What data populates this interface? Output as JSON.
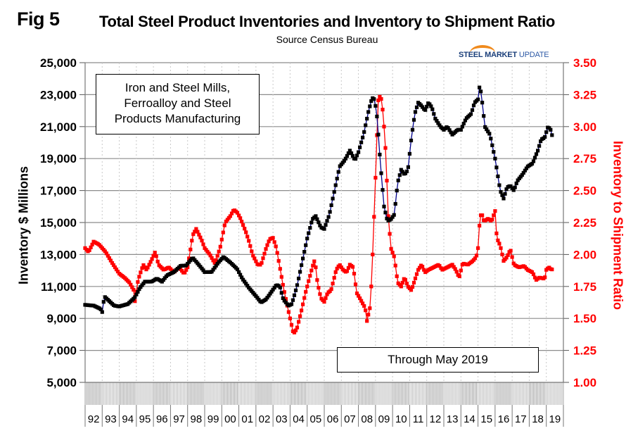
{
  "header": {
    "fig_label": "Fig 5",
    "title": "Total Steel Product Inventories and Inventory to Shipment Ratio",
    "subtitle": "Source Census Bureau",
    "logo_text_bold": "STEEL MARKET",
    "logo_text_light": " UPDATE"
  },
  "annotations": {
    "box1_lines": [
      "Iron and Steel Mills,",
      "Ferroalloy and Steel",
      "Products Manufacturing"
    ],
    "box2": "Through May 2019"
  },
  "colors": {
    "inventory_marker": "#000000",
    "inventory_line": "#00008b",
    "ratio": "#ff0000",
    "grid": "#8c8c8c"
  },
  "chart_data": {
    "type": "line",
    "title": "Total Steel Product Inventories and Inventory to Shipment Ratio",
    "subtitle": "Source Census Bureau",
    "xlabel": "",
    "ylabel": "Inventory $ Millions",
    "y2label": "Inventory to Shipment Ratio",
    "ylim": [
      5000,
      25000
    ],
    "y2lim": [
      1.0,
      3.5
    ],
    "yticks": [
      "5,000",
      "7,000",
      "9,000",
      "11,000",
      "13,000",
      "15,000",
      "17,000",
      "19,000",
      "21,000",
      "23,000",
      "25,000"
    ],
    "y2ticks": [
      "1.00",
      "1.25",
      "1.50",
      "1.75",
      "2.00",
      "2.25",
      "2.50",
      "2.75",
      "3.00",
      "3.25",
      "3.50"
    ],
    "xticks": [
      "92",
      "93",
      "94",
      "95",
      "96",
      "97",
      "98",
      "99",
      "00",
      "01",
      "02",
      "03",
      "04",
      "05",
      "06",
      "07",
      "08",
      "09",
      "10",
      "11",
      "12",
      "13",
      "14",
      "15",
      "16",
      "17",
      "18",
      "19"
    ],
    "x_range": [
      "1992-01",
      "2019-05"
    ],
    "grid": true,
    "series": [
      {
        "name": "Inventory $ Millions",
        "axis": "left",
        "points_year_value": [
          [
            1992.0,
            9850
          ],
          [
            1992.5,
            9800
          ],
          [
            1992.9,
            9600
          ],
          [
            1993.05,
            9300
          ],
          [
            1993.1,
            10400
          ],
          [
            1993.4,
            10100
          ],
          [
            1993.7,
            9800
          ],
          [
            1994.0,
            9750
          ],
          [
            1994.5,
            9900
          ],
          [
            1994.9,
            10300
          ],
          [
            1995.2,
            10900
          ],
          [
            1995.5,
            11300
          ],
          [
            1995.9,
            11300
          ],
          [
            1996.2,
            11500
          ],
          [
            1996.5,
            11300
          ],
          [
            1996.8,
            11700
          ],
          [
            1997.2,
            11900
          ],
          [
            1997.6,
            12300
          ],
          [
            1997.9,
            12300
          ],
          [
            1998.3,
            12800
          ],
          [
            1998.7,
            12300
          ],
          [
            1999.0,
            11900
          ],
          [
            1999.4,
            11900
          ],
          [
            1999.8,
            12500
          ],
          [
            2000.1,
            12850
          ],
          [
            2000.5,
            12500
          ],
          [
            2000.9,
            12100
          ],
          [
            2001.2,
            11500
          ],
          [
            2001.6,
            10900
          ],
          [
            2002.0,
            10400
          ],
          [
            2002.3,
            10000
          ],
          [
            2002.6,
            10200
          ],
          [
            2003.0,
            10800
          ],
          [
            2003.2,
            11100
          ],
          [
            2003.4,
            11000
          ],
          [
            2003.6,
            10200
          ],
          [
            2003.9,
            9800
          ],
          [
            2004.1,
            9900
          ],
          [
            2004.4,
            11000
          ],
          [
            2004.7,
            12500
          ],
          [
            2005.0,
            14000
          ],
          [
            2005.3,
            15200
          ],
          [
            2005.5,
            15400
          ],
          [
            2005.8,
            14700
          ],
          [
            2006.0,
            14600
          ],
          [
            2006.3,
            15500
          ],
          [
            2006.6,
            17000
          ],
          [
            2006.9,
            18500
          ],
          [
            2007.2,
            18900
          ],
          [
            2007.5,
            19500
          ],
          [
            2007.8,
            18900
          ],
          [
            2008.0,
            19400
          ],
          [
            2008.3,
            20500
          ],
          [
            2008.6,
            22000
          ],
          [
            2008.8,
            22800
          ],
          [
            2008.95,
            22700
          ],
          [
            2009.1,
            21500
          ],
          [
            2009.3,
            18500
          ],
          [
            2009.5,
            16000
          ],
          [
            2009.7,
            15100
          ],
          [
            2009.9,
            15200
          ],
          [
            2010.1,
            15500
          ],
          [
            2010.3,
            17500
          ],
          [
            2010.5,
            18300
          ],
          [
            2010.7,
            18000
          ],
          [
            2010.9,
            18300
          ],
          [
            2011.1,
            20300
          ],
          [
            2011.3,
            21800
          ],
          [
            2011.5,
            22500
          ],
          [
            2011.7,
            22300
          ],
          [
            2011.9,
            22000
          ],
          [
            2012.1,
            22500
          ],
          [
            2012.3,
            22200
          ],
          [
            2012.5,
            21500
          ],
          [
            2012.8,
            21000
          ],
          [
            2013.0,
            20800
          ],
          [
            2013.2,
            21000
          ],
          [
            2013.5,
            20500
          ],
          [
            2013.8,
            20800
          ],
          [
            2014.0,
            20800
          ],
          [
            2014.3,
            21500
          ],
          [
            2014.6,
            21800
          ],
          [
            2014.8,
            22500
          ],
          [
            2015.0,
            22700
          ],
          [
            2015.1,
            23600
          ],
          [
            2015.2,
            23000
          ],
          [
            2015.4,
            21000
          ],
          [
            2015.7,
            20500
          ],
          [
            2016.0,
            19000
          ],
          [
            2016.3,
            17000
          ],
          [
            2016.5,
            16500
          ],
          [
            2016.7,
            17200
          ],
          [
            2016.9,
            17300
          ],
          [
            2017.1,
            17000
          ],
          [
            2017.3,
            17600
          ],
          [
            2017.6,
            18000
          ],
          [
            2017.9,
            18500
          ],
          [
            2018.2,
            18700
          ],
          [
            2018.5,
            19500
          ],
          [
            2018.7,
            20200
          ],
          [
            2018.9,
            20300
          ],
          [
            2019.1,
            21000
          ],
          [
            2019.25,
            20800
          ],
          [
            2019.4,
            20200
          ]
        ]
      },
      {
        "name": "Inventory to Shipment Ratio",
        "axis": "right",
        "points_year_value": [
          [
            1992.0,
            2.05
          ],
          [
            1992.2,
            2.02
          ],
          [
            1992.5,
            2.1
          ],
          [
            1992.8,
            2.08
          ],
          [
            1993.2,
            2.02
          ],
          [
            1993.6,
            1.93
          ],
          [
            1994.0,
            1.85
          ],
          [
            1994.3,
            1.82
          ],
          [
            1994.6,
            1.78
          ],
          [
            1994.85,
            1.72
          ],
          [
            1994.9,
            1.62
          ],
          [
            1995.1,
            1.8
          ],
          [
            1995.4,
            1.92
          ],
          [
            1995.6,
            1.88
          ],
          [
            1995.9,
            1.96
          ],
          [
            1996.1,
            2.02
          ],
          [
            1996.3,
            1.92
          ],
          [
            1996.6,
            1.88
          ],
          [
            1996.9,
            1.9
          ],
          [
            1997.2,
            1.86
          ],
          [
            1997.5,
            1.9
          ],
          [
            1997.8,
            1.85
          ],
          [
            1998.0,
            1.9
          ],
          [
            1998.3,
            2.15
          ],
          [
            1998.5,
            2.2
          ],
          [
            1998.8,
            2.12
          ],
          [
            1999.0,
            2.05
          ],
          [
            1999.3,
            2.0
          ],
          [
            1999.6,
            1.93
          ],
          [
            1999.9,
            2.05
          ],
          [
            2000.2,
            2.25
          ],
          [
            2000.5,
            2.3
          ],
          [
            2000.7,
            2.35
          ],
          [
            2000.9,
            2.33
          ],
          [
            2001.1,
            2.28
          ],
          [
            2001.4,
            2.18
          ],
          [
            2001.6,
            2.1
          ],
          [
            2001.8,
            2.0
          ],
          [
            2002.1,
            1.92
          ],
          [
            2002.3,
            1.92
          ],
          [
            2002.6,
            2.05
          ],
          [
            2002.8,
            2.12
          ],
          [
            2003.0,
            2.13
          ],
          [
            2003.2,
            2.05
          ],
          [
            2003.4,
            1.9
          ],
          [
            2003.6,
            1.75
          ],
          [
            2003.8,
            1.62
          ],
          [
            2004.0,
            1.5
          ],
          [
            2004.2,
            1.38
          ],
          [
            2004.4,
            1.42
          ],
          [
            2004.7,
            1.58
          ],
          [
            2004.9,
            1.7
          ],
          [
            2005.1,
            1.8
          ],
          [
            2005.3,
            1.9
          ],
          [
            2005.45,
            1.96
          ],
          [
            2005.6,
            1.78
          ],
          [
            2005.8,
            1.66
          ],
          [
            2006.0,
            1.63
          ],
          [
            2006.2,
            1.7
          ],
          [
            2006.4,
            1.72
          ],
          [
            2006.7,
            1.88
          ],
          [
            2006.9,
            1.92
          ],
          [
            2007.1,
            1.88
          ],
          [
            2007.3,
            1.86
          ],
          [
            2007.5,
            1.92
          ],
          [
            2007.7,
            1.9
          ],
          [
            2007.9,
            1.7
          ],
          [
            2008.2,
            1.63
          ],
          [
            2008.4,
            1.58
          ],
          [
            2008.5,
            1.48
          ],
          [
            2008.7,
            1.6
          ],
          [
            2008.85,
            2.05
          ],
          [
            2009.0,
            2.6
          ],
          [
            2009.15,
            3.2
          ],
          [
            2009.3,
            3.25
          ],
          [
            2009.45,
            3.1
          ],
          [
            2009.6,
            2.8
          ],
          [
            2009.75,
            2.3
          ],
          [
            2009.9,
            2.05
          ],
          [
            2010.1,
            1.98
          ],
          [
            2010.3,
            1.78
          ],
          [
            2010.5,
            1.75
          ],
          [
            2010.7,
            1.82
          ],
          [
            2010.9,
            1.75
          ],
          [
            2011.1,
            1.72
          ],
          [
            2011.3,
            1.8
          ],
          [
            2011.5,
            1.88
          ],
          [
            2011.7,
            1.92
          ],
          [
            2011.9,
            1.86
          ],
          [
            2012.1,
            1.88
          ],
          [
            2012.4,
            1.9
          ],
          [
            2012.7,
            1.92
          ],
          [
            2012.9,
            1.88
          ],
          [
            2013.2,
            1.9
          ],
          [
            2013.5,
            1.92
          ],
          [
            2013.7,
            1.88
          ],
          [
            2013.9,
            1.82
          ],
          [
            2014.1,
            1.93
          ],
          [
            2014.4,
            1.92
          ],
          [
            2014.7,
            1.95
          ],
          [
            2014.9,
            1.98
          ],
          [
            2015.0,
            2.05
          ],
          [
            2015.1,
            2.26
          ],
          [
            2015.2,
            2.33
          ],
          [
            2015.35,
            2.26
          ],
          [
            2015.6,
            2.28
          ],
          [
            2015.8,
            2.26
          ],
          [
            2016.0,
            2.34
          ],
          [
            2016.1,
            2.13
          ],
          [
            2016.3,
            2.07
          ],
          [
            2016.5,
            1.95
          ],
          [
            2016.7,
            1.98
          ],
          [
            2016.9,
            2.04
          ],
          [
            2017.1,
            1.92
          ],
          [
            2017.4,
            1.9
          ],
          [
            2017.7,
            1.91
          ],
          [
            2017.9,
            1.88
          ],
          [
            2018.2,
            1.86
          ],
          [
            2018.4,
            1.8
          ],
          [
            2018.6,
            1.82
          ],
          [
            2018.9,
            1.81
          ],
          [
            2019.0,
            1.88
          ],
          [
            2019.15,
            1.9
          ],
          [
            2019.3,
            1.88
          ],
          [
            2019.4,
            1.89
          ]
        ]
      }
    ]
  }
}
